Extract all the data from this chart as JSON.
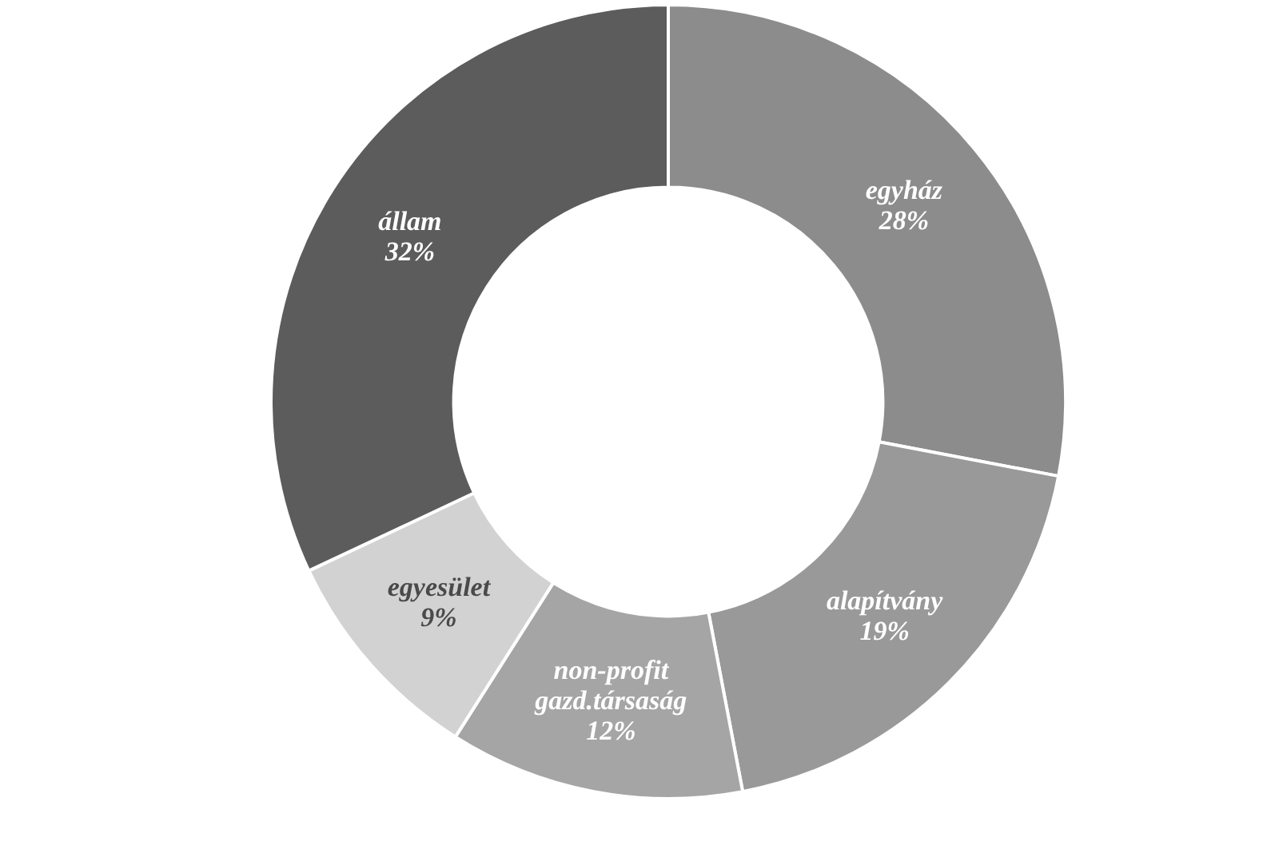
{
  "chart_data": {
    "type": "donut",
    "categories": [
      "egyház",
      "alapítvány",
      "non-profit gazd.társaság",
      "egyesület",
      "állam"
    ],
    "values": [
      28,
      19,
      12,
      9,
      32
    ],
    "colors": [
      "#8c8c8c",
      "#999999",
      "#a5a5a5",
      "#d2d2d2",
      "#5c5c5c"
    ],
    "value_labels": [
      "28%",
      "19%",
      "12%",
      "9%",
      "32%"
    ],
    "legend": false
  }
}
